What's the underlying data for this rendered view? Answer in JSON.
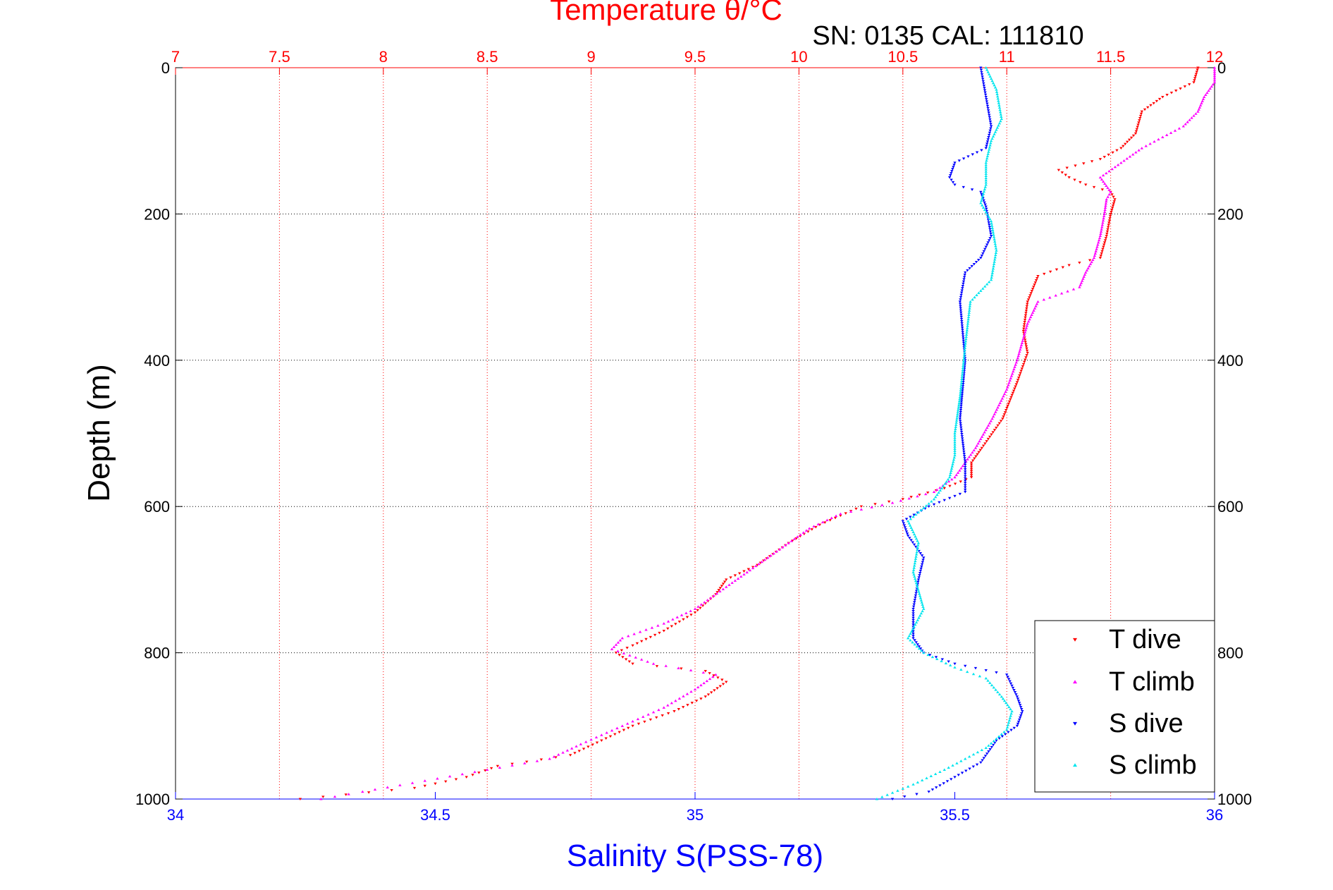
{
  "chart_data": {
    "type": "scatter",
    "title": "Temperature θ/°C",
    "subtitle": "SN: 0135  CAL: 111810",
    "xlabel": "Salinity S(PSS-78)",
    "ylabel": "Depth (m)",
    "top_axis": {
      "label": "Temperature θ/°C",
      "range": [
        7,
        12
      ],
      "ticks": [
        "7",
        "7.5",
        "8",
        "8.5",
        "9",
        "9.5",
        "10",
        "10.5",
        "11",
        "11.5",
        "12"
      ]
    },
    "bottom_axis": {
      "label": "Salinity S(PSS-78)",
      "range": [
        34,
        36
      ],
      "ticks": [
        "34",
        "34.5",
        "35",
        "35.5",
        "36"
      ]
    },
    "y_axis": {
      "label": "Depth (m)",
      "range": [
        0,
        1000
      ],
      "reversed": true,
      "ticks": [
        "0",
        "200",
        "400",
        "600",
        "800",
        "1000"
      ]
    },
    "grid": true,
    "legend_position": "bottom-right",
    "colors": {
      "t_dive": "#ff0000",
      "t_climb": "#ff00ff",
      "s_dive": "#0000ff",
      "s_climb": "#00e5ee",
      "temperature_axis": "#ff0000",
      "salinity_axis": "#0000ff"
    },
    "series": [
      {
        "name": "T dive",
        "axis": "temperature",
        "marker": "triangle-down",
        "color": "#ff0000",
        "points": [
          [
            0,
            11.92
          ],
          [
            20,
            11.9
          ],
          [
            40,
            11.75
          ],
          [
            60,
            11.65
          ],
          [
            90,
            11.62
          ],
          [
            110,
            11.55
          ],
          [
            125,
            11.45
          ],
          [
            140,
            11.25
          ],
          [
            150,
            11.3
          ],
          [
            160,
            11.38
          ],
          [
            170,
            11.5
          ],
          [
            180,
            11.52
          ],
          [
            200,
            11.5
          ],
          [
            230,
            11.48
          ],
          [
            260,
            11.45
          ],
          [
            270,
            11.3
          ],
          [
            285,
            11.15
          ],
          [
            320,
            11.1
          ],
          [
            360,
            11.08
          ],
          [
            390,
            11.1
          ],
          [
            430,
            11.05
          ],
          [
            480,
            10.98
          ],
          [
            520,
            10.88
          ],
          [
            540,
            10.83
          ],
          [
            560,
            10.83
          ],
          [
            575,
            10.7
          ],
          [
            590,
            10.5
          ],
          [
            600,
            10.3
          ],
          [
            625,
            10.1
          ],
          [
            650,
            9.95
          ],
          [
            680,
            9.8
          ],
          [
            700,
            9.65
          ],
          [
            720,
            9.6
          ],
          [
            745,
            9.5
          ],
          [
            770,
            9.35
          ],
          [
            790,
            9.2
          ],
          [
            800,
            9.12
          ],
          [
            815,
            9.2
          ],
          [
            825,
            9.55
          ],
          [
            840,
            9.65
          ],
          [
            860,
            9.55
          ],
          [
            880,
            9.4
          ],
          [
            900,
            9.2
          ],
          [
            920,
            9.05
          ],
          [
            940,
            8.9
          ],
          [
            955,
            8.55
          ],
          [
            970,
            8.4
          ],
          [
            985,
            8.15
          ],
          [
            1000,
            7.6
          ]
        ]
      },
      {
        "name": "T climb",
        "axis": "temperature",
        "marker": "triangle-up",
        "color": "#ff00ff",
        "points": [
          [
            0,
            12.0
          ],
          [
            20,
            12.0
          ],
          [
            40,
            11.95
          ],
          [
            60,
            11.92
          ],
          [
            80,
            11.85
          ],
          [
            95,
            11.75
          ],
          [
            110,
            11.65
          ],
          [
            130,
            11.55
          ],
          [
            150,
            11.45
          ],
          [
            170,
            11.5
          ],
          [
            180,
            11.48
          ],
          [
            200,
            11.47
          ],
          [
            230,
            11.45
          ],
          [
            260,
            11.42
          ],
          [
            280,
            11.38
          ],
          [
            300,
            11.35
          ],
          [
            320,
            11.15
          ],
          [
            350,
            11.1
          ],
          [
            400,
            11.05
          ],
          [
            440,
            11.0
          ],
          [
            480,
            10.93
          ],
          [
            520,
            10.85
          ],
          [
            560,
            10.75
          ],
          [
            580,
            10.65
          ],
          [
            595,
            10.45
          ],
          [
            610,
            10.2
          ],
          [
            630,
            10.05
          ],
          [
            650,
            9.95
          ],
          [
            670,
            9.85
          ],
          [
            690,
            9.75
          ],
          [
            710,
            9.65
          ],
          [
            740,
            9.5
          ],
          [
            760,
            9.35
          ],
          [
            780,
            9.15
          ],
          [
            795,
            9.1
          ],
          [
            815,
            9.3
          ],
          [
            830,
            9.6
          ],
          [
            850,
            9.5
          ],
          [
            875,
            9.35
          ],
          [
            900,
            9.15
          ],
          [
            925,
            8.95
          ],
          [
            945,
            8.8
          ],
          [
            960,
            8.5
          ],
          [
            975,
            8.2
          ],
          [
            990,
            7.9
          ],
          [
            1000,
            7.7
          ]
        ]
      },
      {
        "name": "S dive",
        "axis": "salinity",
        "marker": "triangle-down",
        "color": "#0000ff",
        "points": [
          [
            0,
            35.55
          ],
          [
            40,
            35.56
          ],
          [
            80,
            35.57
          ],
          [
            110,
            35.56
          ],
          [
            130,
            35.5
          ],
          [
            150,
            35.49
          ],
          [
            160,
            35.5
          ],
          [
            170,
            35.55
          ],
          [
            190,
            35.56
          ],
          [
            230,
            35.57
          ],
          [
            260,
            35.55
          ],
          [
            280,
            35.52
          ],
          [
            320,
            35.51
          ],
          [
            400,
            35.52
          ],
          [
            480,
            35.51
          ],
          [
            540,
            35.52
          ],
          [
            580,
            35.52
          ],
          [
            600,
            35.45
          ],
          [
            620,
            35.4
          ],
          [
            640,
            35.41
          ],
          [
            670,
            35.44
          ],
          [
            700,
            35.43
          ],
          [
            740,
            35.42
          ],
          [
            780,
            35.42
          ],
          [
            800,
            35.44
          ],
          [
            815,
            35.5
          ],
          [
            830,
            35.6
          ],
          [
            860,
            35.62
          ],
          [
            880,
            35.63
          ],
          [
            900,
            35.62
          ],
          [
            920,
            35.58
          ],
          [
            950,
            35.55
          ],
          [
            970,
            35.5
          ],
          [
            990,
            35.45
          ],
          [
            1000,
            35.38
          ]
        ]
      },
      {
        "name": "S climb",
        "axis": "salinity",
        "marker": "triangle-up",
        "color": "#00e5ee",
        "points": [
          [
            0,
            35.56
          ],
          [
            30,
            35.58
          ],
          [
            70,
            35.59
          ],
          [
            100,
            35.57
          ],
          [
            130,
            35.56
          ],
          [
            160,
            35.56
          ],
          [
            185,
            35.55
          ],
          [
            210,
            35.57
          ],
          [
            250,
            35.58
          ],
          [
            290,
            35.57
          ],
          [
            320,
            35.53
          ],
          [
            380,
            35.52
          ],
          [
            450,
            35.51
          ],
          [
            500,
            35.5
          ],
          [
            530,
            35.5
          ],
          [
            560,
            35.49
          ],
          [
            590,
            35.46
          ],
          [
            620,
            35.41
          ],
          [
            650,
            35.43
          ],
          [
            690,
            35.42
          ],
          [
            740,
            35.44
          ],
          [
            780,
            35.41
          ],
          [
            800,
            35.44
          ],
          [
            820,
            35.5
          ],
          [
            835,
            35.56
          ],
          [
            860,
            35.59
          ],
          [
            880,
            35.61
          ],
          [
            905,
            35.6
          ],
          [
            930,
            35.56
          ],
          [
            960,
            35.48
          ],
          [
            980,
            35.42
          ],
          [
            1000,
            35.35
          ]
        ]
      }
    ]
  }
}
